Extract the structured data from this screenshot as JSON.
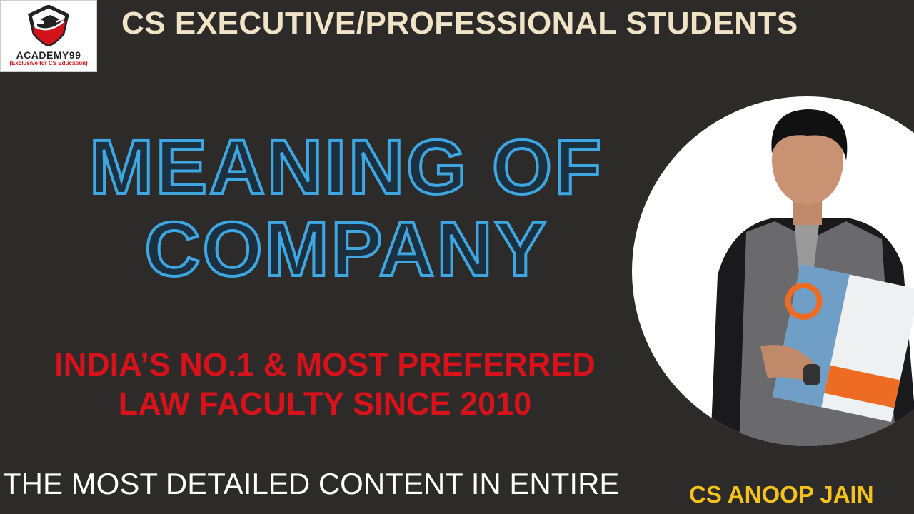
{
  "logo": {
    "brand": "ACADEMY99",
    "tagline": "(Exclusive for CS Education)"
  },
  "header": "CS EXECUTIVE/PROFESSIONAL STUDENTS",
  "title": {
    "line1": "MEANING OF",
    "line2": "COMPANY"
  },
  "tagline": {
    "line1": "INDIA’S NO.1 & MOST PREFERRED",
    "line2": "LAW FACULTY SINCE 2010"
  },
  "bottom_text": "THE MOST DETAILED CONTENT IN ENTIRE",
  "presenter_name": "CS ANOOP JAIN",
  "colors": {
    "background": "#2c2b2a",
    "header": "#f1e3c6",
    "title_outline": "#3ea6e0",
    "tagline": "#d7121b",
    "name": "#f4c21a"
  }
}
